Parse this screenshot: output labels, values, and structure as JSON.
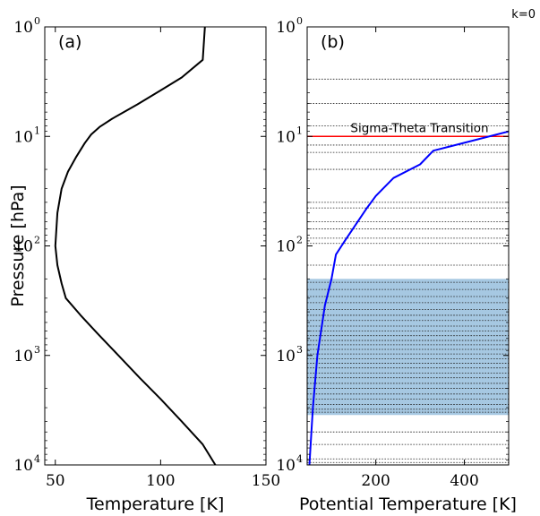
{
  "corner_label": "k=0",
  "chart_data": [
    {
      "type": "line",
      "panel_label": "(a)",
      "xlabel": "Temperature [K]",
      "ylabel": "Pressure [hPa]",
      "xlim": [
        45,
        150
      ],
      "ylim": [
        1,
        10000
      ],
      "y_scale": "log",
      "y_inverted": true,
      "x_ticks": [
        50,
        100,
        150
      ],
      "y_ticks": [
        {
          "value": 1,
          "base": "10",
          "exp": "0"
        },
        {
          "value": 10,
          "base": "10",
          "exp": "1"
        },
        {
          "value": 100,
          "base": "10",
          "exp": "2"
        },
        {
          "value": 1000,
          "base": "10",
          "exp": "3"
        },
        {
          "value": 10000,
          "base": "10",
          "exp": "4"
        }
      ],
      "series": [
        {
          "color": "#000000",
          "points": [
            [
              121,
              1
            ],
            [
              120,
              2
            ],
            [
              110,
              2.9
            ],
            [
              100,
              3.8
            ],
            [
              89,
              5.1
            ],
            [
              77,
              6.9
            ],
            [
              71,
              8.2
            ],
            [
              67,
              9.6
            ],
            [
              64,
              11.5
            ],
            [
              60,
              15.3
            ],
            [
              56,
              21
            ],
            [
              53,
              30
            ],
            [
              51,
              50
            ],
            [
              50,
              100
            ],
            [
              51,
              150
            ],
            [
              53,
              220
            ],
            [
              55,
              300
            ],
            [
              62,
              430
            ],
            [
              70,
              630
            ],
            [
              80,
              1000
            ],
            [
              90,
              1600
            ],
            [
              100,
              2500
            ],
            [
              110,
              4000
            ],
            [
              120,
              6500
            ],
            [
              126,
              10000
            ]
          ]
        }
      ]
    },
    {
      "type": "line",
      "panel_label": "(b)",
      "xlabel": "Potential Temperature [K]",
      "xlim": [
        45,
        500
      ],
      "ylim": [
        1,
        10000
      ],
      "y_scale": "log",
      "y_inverted": true,
      "x_ticks": [
        200,
        400
      ],
      "y_ticks": [
        {
          "value": 1,
          "base": "10",
          "exp": "0"
        },
        {
          "value": 10,
          "base": "10",
          "exp": "1"
        },
        {
          "value": 100,
          "base": "10",
          "exp": "2"
        },
        {
          "value": 1000,
          "base": "10",
          "exp": "3"
        },
        {
          "value": 10000,
          "base": "10",
          "exp": "4"
        }
      ],
      "annotation": "Sigma-Theta Transition",
      "transition_pressure": 10,
      "transition_color": "#ff0000",
      "shaded_range": [
        200,
        3500
      ],
      "shaded_color": "#a6c8e2",
      "dotted_levels": [
        3,
        5,
        8,
        12,
        14,
        20,
        40,
        45,
        60,
        70,
        85,
        95,
        150,
        215,
        250,
        290,
        330,
        380,
        430,
        480,
        540,
        600,
        660,
        730,
        800,
        880,
        970,
        1070,
        1180,
        1300,
        1450,
        1600,
        1800,
        2000,
        2250,
        2500,
        2800,
        3100,
        3300,
        5000,
        6500,
        8800,
        9500
      ],
      "series": [
        {
          "color": "#0000ff",
          "points": [
            [
              50,
              10000
            ],
            [
              58,
              3000
            ],
            [
              68,
              1000
            ],
            [
              85,
              350
            ],
            [
              100,
              200
            ],
            [
              110,
              120
            ],
            [
              130,
              90
            ],
            [
              180,
              45
            ],
            [
              200,
              35
            ],
            [
              240,
              24
            ],
            [
              300,
              18
            ],
            [
              330,
              13.5
            ],
            [
              500,
              9
            ]
          ]
        }
      ]
    }
  ]
}
